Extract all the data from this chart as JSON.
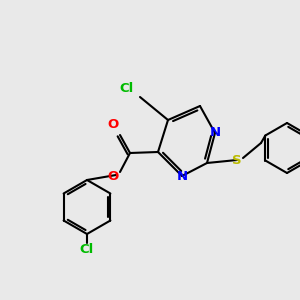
{
  "bg_color": "#e9e9e9",
  "lw": 1.5,
  "font_size": 9.5,
  "colors": {
    "black": "#000000",
    "N": "#0000ff",
    "O": "#ff0000",
    "Cl": "#00bb00",
    "S": "#bbbb00"
  },
  "xlim": [
    0,
    10
  ],
  "ylim": [
    0,
    10
  ]
}
